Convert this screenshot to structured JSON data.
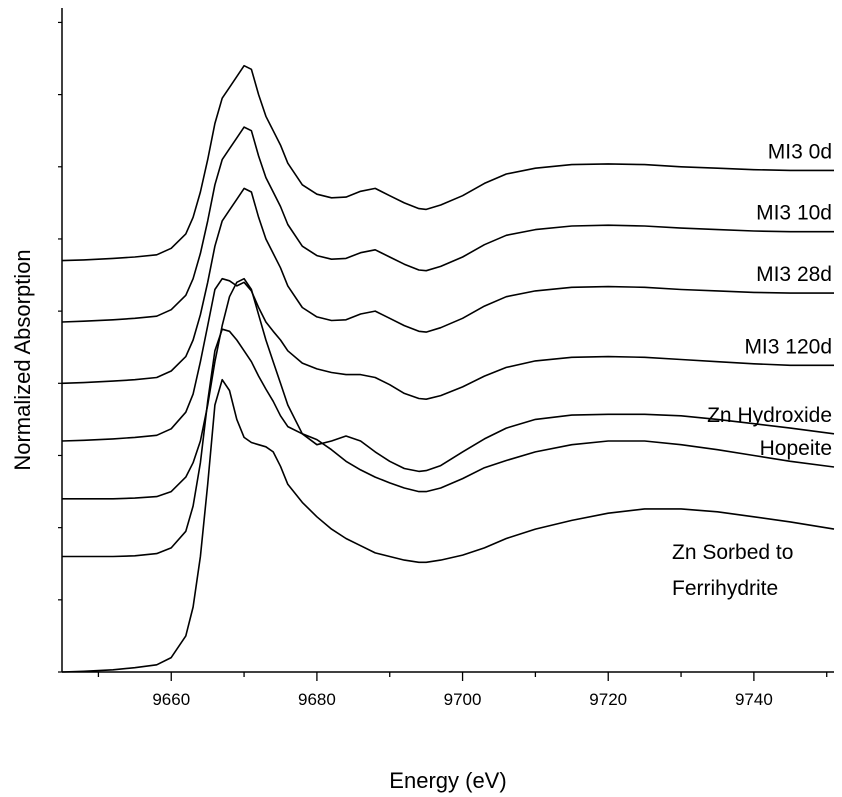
{
  "chart_data": {
    "type": "line",
    "title": "",
    "xlabel": "Energy (eV)",
    "ylabel": "Normalized Absorption",
    "xlim": [
      9645,
      9751
    ],
    "ylim": [
      0,
      9.2
    ],
    "xticks": [
      9660,
      9680,
      9700,
      9720,
      9740
    ],
    "xtick_labels": [
      "9660",
      "9680",
      "9700",
      "9720",
      "9740"
    ],
    "grid": false,
    "legend": "none (series labeled directly above each trace)",
    "series": [
      {
        "name": "MI3 0d",
        "label_lines": [
          "MI3 0d"
        ],
        "x": [
          9645,
          9648,
          9652,
          9655,
          9658,
          9660,
          9662,
          9663,
          9664,
          9665,
          9666,
          9667,
          9668,
          9669,
          9670,
          9671,
          9672,
          9673,
          9674,
          9675,
          9676,
          9678,
          9680,
          9682,
          9684,
          9686,
          9688,
          9690,
          9692,
          9694,
          9695,
          9697,
          9700,
          9703,
          9706,
          9710,
          9715,
          9720,
          9725,
          9730,
          9735,
          9740,
          9745,
          9751
        ],
        "y": [
          5.7,
          5.71,
          5.73,
          5.75,
          5.78,
          5.87,
          6.07,
          6.3,
          6.65,
          7.1,
          7.6,
          7.95,
          8.1,
          8.25,
          8.4,
          8.35,
          8.0,
          7.7,
          7.5,
          7.3,
          7.05,
          6.75,
          6.62,
          6.57,
          6.58,
          6.66,
          6.7,
          6.6,
          6.5,
          6.42,
          6.41,
          6.47,
          6.6,
          6.77,
          6.9,
          6.98,
          7.03,
          7.04,
          7.03,
          7.0,
          6.98,
          6.96,
          6.95,
          6.95
        ]
      },
      {
        "name": "MI3 10d",
        "label_lines": [
          "MI3 10d"
        ],
        "x": [
          9645,
          9648,
          9652,
          9655,
          9658,
          9660,
          9662,
          9663,
          9664,
          9665,
          9666,
          9667,
          9668,
          9669,
          9670,
          9671,
          9672,
          9673,
          9674,
          9675,
          9676,
          9678,
          9680,
          9682,
          9684,
          9686,
          9688,
          9690,
          9692,
          9694,
          9695,
          9697,
          9700,
          9703,
          9706,
          9710,
          9715,
          9720,
          9725,
          9730,
          9735,
          9740,
          9745,
          9751
        ],
        "y": [
          4.85,
          4.86,
          4.88,
          4.9,
          4.93,
          5.02,
          5.22,
          5.45,
          5.8,
          6.25,
          6.75,
          7.1,
          7.25,
          7.4,
          7.55,
          7.5,
          7.15,
          6.85,
          6.65,
          6.45,
          6.2,
          5.9,
          5.77,
          5.72,
          5.73,
          5.81,
          5.85,
          5.75,
          5.65,
          5.57,
          5.56,
          5.62,
          5.75,
          5.92,
          6.05,
          6.13,
          6.18,
          6.19,
          6.18,
          6.15,
          6.13,
          6.11,
          6.1,
          6.1
        ]
      },
      {
        "name": "MI3 28d",
        "label_lines": [
          "MI3 28d"
        ],
        "x": [
          9645,
          9648,
          9652,
          9655,
          9658,
          9660,
          9662,
          9663,
          9664,
          9665,
          9666,
          9667,
          9668,
          9669,
          9670,
          9671,
          9672,
          9673,
          9674,
          9675,
          9676,
          9678,
          9680,
          9682,
          9684,
          9686,
          9688,
          9690,
          9692,
          9694,
          9695,
          9697,
          9700,
          9703,
          9706,
          9710,
          9715,
          9720,
          9725,
          9730,
          9735,
          9740,
          9745,
          9751
        ],
        "y": [
          4.0,
          4.01,
          4.03,
          4.05,
          4.08,
          4.17,
          4.37,
          4.6,
          4.95,
          5.4,
          5.9,
          6.25,
          6.4,
          6.55,
          6.7,
          6.65,
          6.3,
          6.0,
          5.8,
          5.6,
          5.35,
          5.05,
          4.92,
          4.87,
          4.88,
          4.96,
          5.0,
          4.9,
          4.8,
          4.72,
          4.71,
          4.77,
          4.9,
          5.07,
          5.2,
          5.28,
          5.33,
          5.34,
          5.33,
          5.3,
          5.28,
          5.26,
          5.25,
          5.25
        ]
      },
      {
        "name": "MI3 120d",
        "label_lines": [
          "MI3 120d"
        ],
        "x": [
          9645,
          9648,
          9652,
          9655,
          9658,
          9660,
          9662,
          9663,
          9664,
          9665,
          9666,
          9667,
          9668,
          9669,
          9670,
          9671,
          9672,
          9673,
          9674,
          9675,
          9676,
          9678,
          9680,
          9682,
          9684,
          9686,
          9688,
          9690,
          9692,
          9694,
          9695,
          9697,
          9700,
          9703,
          9706,
          9710,
          9715,
          9720,
          9725,
          9730,
          9735,
          9740,
          9745,
          9751
        ],
        "y": [
          3.2,
          3.21,
          3.23,
          3.25,
          3.28,
          3.37,
          3.6,
          3.85,
          4.3,
          4.8,
          5.3,
          5.45,
          5.42,
          5.35,
          5.4,
          5.28,
          5.05,
          4.85,
          4.72,
          4.6,
          4.45,
          4.28,
          4.2,
          4.15,
          4.12,
          4.12,
          4.08,
          3.98,
          3.86,
          3.79,
          3.78,
          3.83,
          3.95,
          4.1,
          4.22,
          4.31,
          4.36,
          4.37,
          4.36,
          4.33,
          4.3,
          4.27,
          4.25,
          4.25
        ]
      },
      {
        "name": "Zn Hydroxide",
        "label_lines": [
          "Zn Hydroxide"
        ],
        "x": [
          9645,
          9648,
          9652,
          9655,
          9658,
          9660,
          9662,
          9663,
          9664,
          9665,
          9666,
          9667,
          9668,
          9669,
          9670,
          9671,
          9672,
          9673,
          9674,
          9675,
          9676,
          9678,
          9680,
          9682,
          9684,
          9686,
          9688,
          9690,
          9692,
          9694,
          9695,
          9697,
          9700,
          9703,
          9706,
          9710,
          9715,
          9720,
          9725,
          9730,
          9735,
          9740,
          9745,
          9751
        ],
        "y": [
          2.4,
          2.4,
          2.4,
          2.41,
          2.43,
          2.5,
          2.7,
          2.9,
          3.2,
          3.7,
          4.3,
          4.8,
          5.2,
          5.4,
          5.45,
          5.3,
          4.95,
          4.6,
          4.3,
          4.0,
          3.7,
          3.3,
          3.15,
          3.2,
          3.27,
          3.2,
          3.05,
          2.92,
          2.82,
          2.78,
          2.79,
          2.86,
          3.05,
          3.23,
          3.38,
          3.5,
          3.56,
          3.57,
          3.57,
          3.55,
          3.5,
          3.44,
          3.38,
          3.3
        ]
      },
      {
        "name": "Hopeite",
        "label_lines": [
          "Hopeite"
        ],
        "x": [
          9645,
          9648,
          9652,
          9655,
          9658,
          9660,
          9662,
          9663,
          9664,
          9665,
          9666,
          9667,
          9668,
          9669,
          9670,
          9671,
          9672,
          9673,
          9674,
          9675,
          9676,
          9678,
          9680,
          9682,
          9684,
          9686,
          9688,
          9690,
          9692,
          9694,
          9695,
          9697,
          9700,
          9703,
          9706,
          9710,
          9715,
          9720,
          9725,
          9730,
          9735,
          9740,
          9745,
          9751
        ],
        "y": [
          1.6,
          1.6,
          1.6,
          1.61,
          1.64,
          1.72,
          1.95,
          2.3,
          2.9,
          3.75,
          4.45,
          4.75,
          4.72,
          4.6,
          4.45,
          4.3,
          4.1,
          3.92,
          3.75,
          3.55,
          3.4,
          3.3,
          3.22,
          3.08,
          2.92,
          2.8,
          2.7,
          2.62,
          2.55,
          2.5,
          2.5,
          2.55,
          2.68,
          2.83,
          2.93,
          3.05,
          3.15,
          3.2,
          3.2,
          3.15,
          3.08,
          3.0,
          2.92,
          2.84
        ]
      },
      {
        "name": "Zn Sorbed to Ferrihydrite",
        "label_lines": [
          "Zn Sorbed to",
          "Ferrihydrite"
        ],
        "x": [
          9645,
          9648,
          9652,
          9655,
          9658,
          9660,
          9662,
          9663,
          9664,
          9665,
          9666,
          9667,
          9668,
          9669,
          9670,
          9671,
          9672,
          9673,
          9674,
          9675,
          9676,
          9678,
          9680,
          9682,
          9684,
          9686,
          9688,
          9690,
          9692,
          9694,
          9695,
          9697,
          9700,
          9703,
          9706,
          9710,
          9715,
          9720,
          9725,
          9730,
          9735,
          9740,
          9745,
          9751
        ],
        "y": [
          0.0,
          0.01,
          0.03,
          0.06,
          0.1,
          0.2,
          0.5,
          0.9,
          1.6,
          2.6,
          3.7,
          4.05,
          3.9,
          3.5,
          3.25,
          3.18,
          3.15,
          3.12,
          3.05,
          2.85,
          2.6,
          2.35,
          2.15,
          1.98,
          1.85,
          1.75,
          1.65,
          1.6,
          1.55,
          1.52,
          1.52,
          1.55,
          1.62,
          1.72,
          1.85,
          1.98,
          2.1,
          2.2,
          2.26,
          2.26,
          2.22,
          2.15,
          2.08,
          1.98
        ]
      }
    ]
  }
}
